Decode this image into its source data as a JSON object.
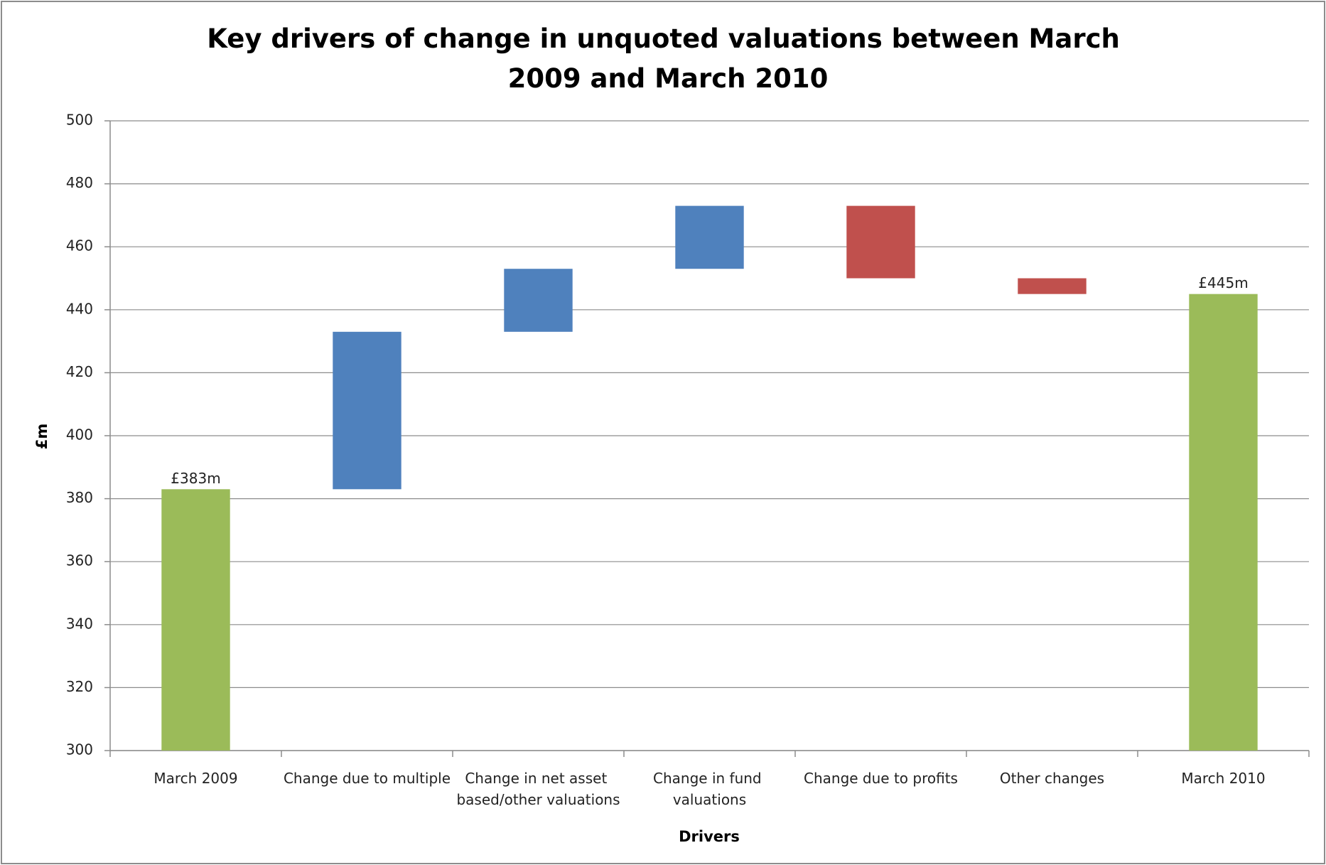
{
  "chart_data": {
    "type": "waterfall",
    "title": "Key drivers of change in unquoted valuations between March 2009 and March 2010",
    "x_label": "Drivers",
    "y_label": "£m",
    "categories": [
      "March 2009",
      "Change due to multiple",
      "Change in net asset based/other valuations",
      "Change in fund valuations",
      "Change due to profits",
      "Other changes",
      "March 2010"
    ],
    "values": [
      383,
      50,
      20,
      20,
      -23,
      -5,
      445
    ],
    "value_labels": [
      "£383m",
      null,
      null,
      null,
      null,
      null,
      "£445m"
    ],
    "is_total": [
      true,
      false,
      false,
      false,
      false,
      false,
      true
    ],
    "colors": [
      "#9bbb59",
      "#4f81bd",
      "#4f81bd",
      "#4f81bd",
      "#c0504d",
      "#c0504d",
      "#9bbb59"
    ],
    "ylim": [
      300,
      500
    ],
    "yticks": [
      300,
      320,
      340,
      360,
      380,
      400,
      420,
      440,
      460,
      480,
      500
    ],
    "grid": true
  }
}
